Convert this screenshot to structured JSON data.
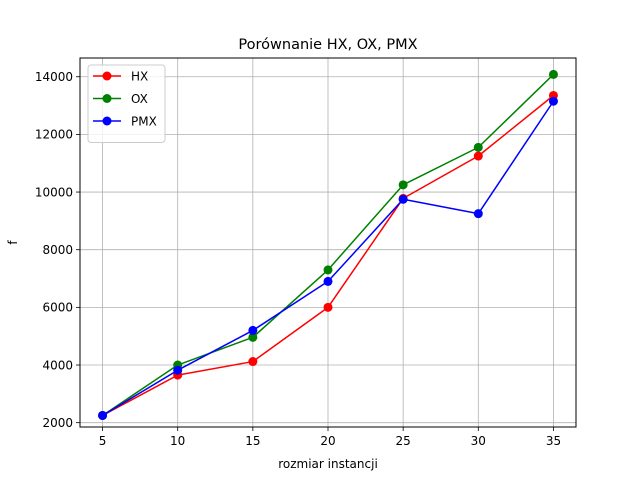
{
  "chart_data": {
    "type": "line",
    "title": "Porównanie HX, OX, PMX",
    "xlabel": "rozmiar instancji",
    "ylabel": "f",
    "x": [
      5,
      10,
      15,
      20,
      25,
      30,
      35
    ],
    "xlim": [
      3.5,
      36.5
    ],
    "ylim": [
      1850,
      14650
    ],
    "xticks": [
      5,
      10,
      15,
      20,
      25,
      30,
      35
    ],
    "yticks": [
      2000,
      4000,
      6000,
      8000,
      10000,
      12000,
      14000
    ],
    "grid": true,
    "legend_position": "top-left",
    "marker": "circle",
    "series": [
      {
        "name": "HX",
        "color": "#ff0000",
        "values": [
          2250,
          3650,
          4120,
          6000,
          9780,
          11250,
          13350
        ]
      },
      {
        "name": "OX",
        "color": "#008000",
        "values": [
          2250,
          4000,
          4960,
          7300,
          10250,
          11550,
          14080
        ]
      },
      {
        "name": "PMX",
        "color": "#0000ff",
        "values": [
          2250,
          3820,
          5200,
          6900,
          9750,
          9250,
          13150
        ]
      }
    ]
  }
}
